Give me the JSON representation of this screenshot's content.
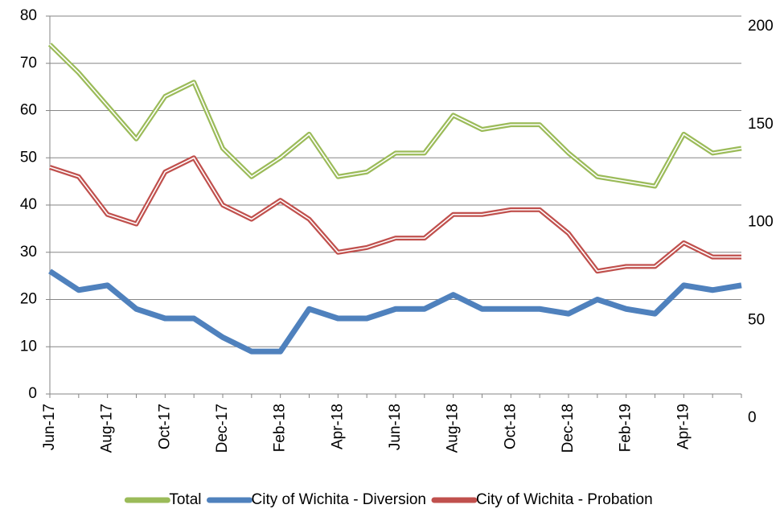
{
  "chart_data": {
    "type": "line",
    "categories": [
      "Jun-17",
      null,
      "Aug-17",
      null,
      "Oct-17",
      null,
      "Dec-17",
      null,
      "Feb-18",
      null,
      "Apr-18",
      null,
      "Jun-18",
      null,
      "Aug-18",
      null,
      "Oct-18",
      null,
      "Dec-18",
      null,
      "Feb-19",
      null,
      "Apr-19",
      null,
      null
    ],
    "series": [
      {
        "name": "Total",
        "color": "#9bbb59",
        "style": "double",
        "values": [
          74,
          68,
          61,
          54,
          63,
          66,
          52,
          46,
          50,
          55,
          46,
          47,
          51,
          51,
          59,
          56,
          57,
          57,
          51,
          46,
          45,
          44,
          55,
          51,
          52
        ]
      },
      {
        "name": "City of Wichita - Diversion",
        "color": "#4f81bd",
        "style": "solid",
        "values": [
          26,
          22,
          23,
          18,
          16,
          16,
          12,
          9,
          9,
          18,
          16,
          16,
          18,
          18,
          21,
          18,
          18,
          18,
          17,
          20,
          18,
          17,
          23,
          22,
          23
        ]
      },
      {
        "name": "City of Wichita - Probation",
        "color": "#c0504d",
        "style": "double",
        "values": [
          48,
          46,
          38,
          36,
          47,
          50,
          40,
          37,
          41,
          37,
          30,
          31,
          33,
          33,
          38,
          38,
          39,
          39,
          34,
          26,
          27,
          27,
          32,
          29,
          29
        ]
      }
    ],
    "ylim": [
      0,
      80
    ],
    "yticks": [
      0,
      10,
      20,
      30,
      40,
      50,
      60,
      70,
      80
    ],
    "y2lim": [
      0,
      200
    ],
    "y2ticks": [
      0,
      50,
      100,
      150,
      200
    ],
    "grid": true,
    "legend": "bottom"
  }
}
